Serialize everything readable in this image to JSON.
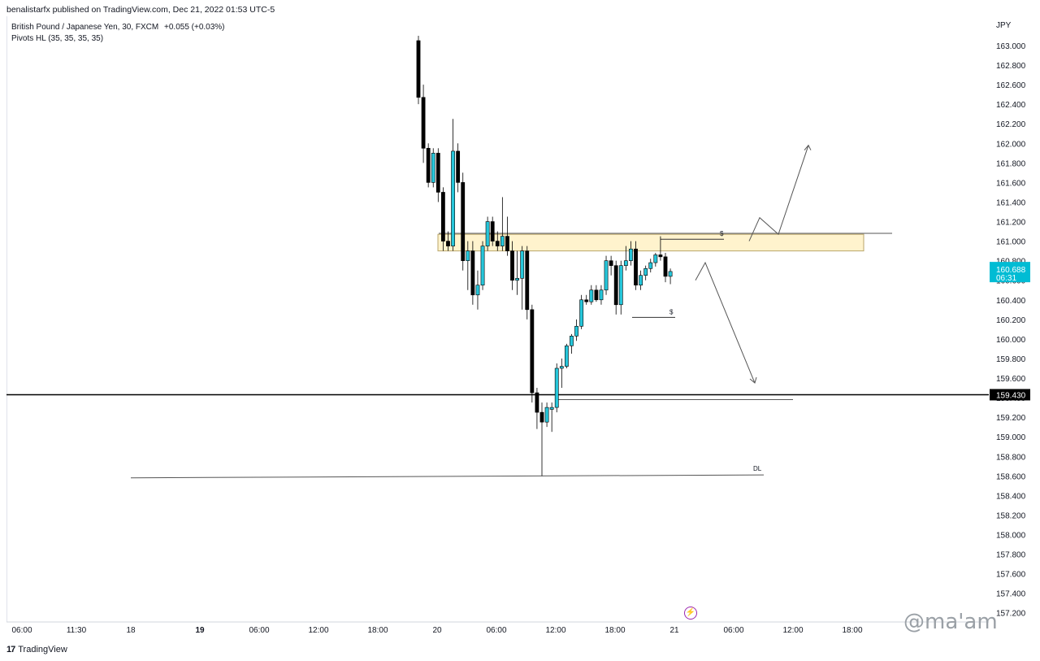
{
  "header": {
    "publisher_text": "benalistarfx published on TradingView.com, Dec 21, 2022 01:53 UTC-5"
  },
  "legend": {
    "symbol_line": "British Pound / Japanese Yen, 30, FXCM",
    "change": "+0.055 (+0.03%)",
    "indicator": "Pivots HL (35, 35, 35, 35)"
  },
  "price_scale": {
    "currency": "JPY",
    "ticks": [
      "163.000",
      "162.800",
      "162.600",
      "162.400",
      "162.200",
      "162.000",
      "161.800",
      "161.600",
      "161.400",
      "161.200",
      "161.000",
      "160.800",
      "160.600",
      "160.400",
      "160.200",
      "160.000",
      "159.800",
      "159.600",
      "159.400",
      "159.200",
      "159.000",
      "158.800",
      "158.600",
      "158.400",
      "158.200",
      "158.000",
      "157.800",
      "157.600",
      "157.400",
      "157.200"
    ],
    "current_price_label": "160.688",
    "countdown_label": "06:31",
    "horizontal_line_label": "159.430"
  },
  "time_scale": {
    "ticks": [
      {
        "label": "06:00",
        "bold": false
      },
      {
        "label": "11:30",
        "bold": false
      },
      {
        "label": "18",
        "bold": false
      },
      {
        "label": "19",
        "bold": true
      },
      {
        "label": "06:00",
        "bold": false
      },
      {
        "label": "12:00",
        "bold": false
      },
      {
        "label": "18:00",
        "bold": false
      },
      {
        "label": "20",
        "bold": false
      },
      {
        "label": "06:00",
        "bold": false
      },
      {
        "label": "12:00",
        "bold": false
      },
      {
        "label": "18:00",
        "bold": false
      },
      {
        "label": "21",
        "bold": false
      },
      {
        "label": "06:00",
        "bold": false
      },
      {
        "label": "12:00",
        "bold": false
      },
      {
        "label": "18:00",
        "bold": false
      }
    ]
  },
  "annotations": {
    "liquidity_top": "$",
    "liquidity_mid": "$",
    "dl_label": "DL"
  },
  "footer": {
    "brand": "TradingView",
    "brand_mark": "17",
    "watermark": "@ma'am"
  },
  "colors": {
    "bull": "#26c6da",
    "bear": "#000000",
    "zone_fill": "#fff3cd",
    "zone_stroke": "#b8a56a",
    "price_badge": "#00bcd4",
    "line_badge": "#000000"
  },
  "chart_data": {
    "type": "candlestick",
    "symbol": "British Pound / Japanese Yen",
    "interval": "30",
    "ylim": [
      157.2,
      163.0
    ],
    "candles": [
      {
        "o": 163.05,
        "h": 163.1,
        "l": 162.4,
        "c": 162.47
      },
      {
        "o": 162.47,
        "h": 162.6,
        "l": 161.8,
        "c": 161.95
      },
      {
        "o": 161.95,
        "h": 162.0,
        "l": 161.55,
        "c": 161.6
      },
      {
        "o": 161.6,
        "h": 161.95,
        "l": 161.55,
        "c": 161.9
      },
      {
        "o": 161.9,
        "h": 161.95,
        "l": 161.4,
        "c": 161.5
      },
      {
        "o": 161.5,
        "h": 161.55,
        "l": 160.9,
        "c": 161.0
      },
      {
        "o": 161.0,
        "h": 161.1,
        "l": 160.9,
        "c": 160.95
      },
      {
        "o": 160.95,
        "h": 162.25,
        "l": 160.9,
        "c": 161.92
      },
      {
        "o": 161.92,
        "h": 162.0,
        "l": 161.5,
        "c": 161.6
      },
      {
        "o": 161.6,
        "h": 161.7,
        "l": 160.7,
        "c": 160.8
      },
      {
        "o": 160.8,
        "h": 161.0,
        "l": 160.5,
        "c": 160.9
      },
      {
        "o": 160.9,
        "h": 161.0,
        "l": 160.35,
        "c": 160.45
      },
      {
        "o": 160.45,
        "h": 160.7,
        "l": 160.3,
        "c": 160.55
      },
      {
        "o": 160.55,
        "h": 161.0,
        "l": 160.5,
        "c": 160.95
      },
      {
        "o": 160.95,
        "h": 161.25,
        "l": 160.9,
        "c": 161.2
      },
      {
        "o": 161.2,
        "h": 161.25,
        "l": 160.95,
        "c": 161.0
      },
      {
        "o": 161.0,
        "h": 161.1,
        "l": 160.9,
        "c": 160.95
      },
      {
        "o": 160.95,
        "h": 161.45,
        "l": 160.9,
        "c": 161.05
      },
      {
        "o": 161.05,
        "h": 161.25,
        "l": 160.85,
        "c": 160.9
      },
      {
        "o": 160.9,
        "h": 161.0,
        "l": 160.5,
        "c": 160.6
      },
      {
        "o": 160.6,
        "h": 160.9,
        "l": 160.45,
        "c": 160.62
      },
      {
        "o": 160.62,
        "h": 160.95,
        "l": 160.3,
        "c": 160.9
      },
      {
        "o": 160.9,
        "h": 160.95,
        "l": 160.2,
        "c": 160.3
      },
      {
        "o": 160.3,
        "h": 160.35,
        "l": 159.35,
        "c": 159.45
      },
      {
        "o": 159.45,
        "h": 159.5,
        "l": 159.08,
        "c": 159.25
      },
      {
        "o": 159.25,
        "h": 159.35,
        "l": 158.6,
        "c": 159.15
      },
      {
        "o": 159.15,
        "h": 159.35,
        "l": 159.1,
        "c": 159.3
      },
      {
        "o": 159.28,
        "h": 159.35,
        "l": 159.05,
        "c": 159.3
      },
      {
        "o": 159.3,
        "h": 159.75,
        "l": 159.25,
        "c": 159.7
      },
      {
        "o": 159.7,
        "h": 159.8,
        "l": 159.5,
        "c": 159.72
      },
      {
        "o": 159.72,
        "h": 159.95,
        "l": 159.7,
        "c": 159.93
      },
      {
        "o": 159.93,
        "h": 160.05,
        "l": 159.85,
        "c": 160.03
      },
      {
        "o": 160.03,
        "h": 160.2,
        "l": 159.98,
        "c": 160.13
      },
      {
        "o": 160.13,
        "h": 160.45,
        "l": 160.1,
        "c": 160.4
      },
      {
        "o": 160.4,
        "h": 160.45,
        "l": 160.35,
        "c": 160.38
      },
      {
        "o": 160.38,
        "h": 160.55,
        "l": 160.35,
        "c": 160.5
      },
      {
        "o": 160.5,
        "h": 160.55,
        "l": 160.38,
        "c": 160.4
      },
      {
        "o": 160.4,
        "h": 160.55,
        "l": 160.35,
        "c": 160.5
      },
      {
        "o": 160.5,
        "h": 160.85,
        "l": 160.45,
        "c": 160.8
      },
      {
        "o": 160.8,
        "h": 160.85,
        "l": 160.65,
        "c": 160.75
      },
      {
        "o": 160.75,
        "h": 160.8,
        "l": 160.25,
        "c": 160.35
      },
      {
        "o": 160.35,
        "h": 160.8,
        "l": 160.25,
        "c": 160.75
      },
      {
        "o": 160.75,
        "h": 160.95,
        "l": 160.7,
        "c": 160.8
      },
      {
        "o": 160.8,
        "h": 161.0,
        "l": 160.75,
        "c": 160.92
      },
      {
        "o": 160.92,
        "h": 161.0,
        "l": 160.5,
        "c": 160.55
      },
      {
        "o": 160.55,
        "h": 160.7,
        "l": 160.5,
        "c": 160.65
      },
      {
        "o": 160.65,
        "h": 160.75,
        "l": 160.6,
        "c": 160.72
      },
      {
        "o": 160.72,
        "h": 160.82,
        "l": 160.68,
        "c": 160.78
      },
      {
        "o": 160.78,
        "h": 160.88,
        "l": 160.74,
        "c": 160.86
      },
      {
        "o": 160.86,
        "h": 161.05,
        "l": 160.8,
        "c": 160.84
      },
      {
        "o": 160.84,
        "h": 160.88,
        "l": 160.58,
        "c": 160.64
      },
      {
        "o": 160.64,
        "h": 160.72,
        "l": 160.56,
        "c": 160.69
      }
    ],
    "zone": {
      "top": 161.07,
      "bottom": 160.9
    },
    "horizontal_lines": [
      {
        "price": 159.43,
        "label": "159.430"
      },
      {
        "price": 158.6,
        "label": "DL"
      },
      {
        "price": 159.38
      },
      {
        "price": 161.08
      },
      {
        "price": 161.02
      },
      {
        "price": 160.22
      }
    ],
    "current_price": 160.688,
    "projection_up": [
      161.0,
      161.24,
      161.07,
      161.98
    ],
    "projection_down": [
      160.6,
      160.78,
      159.55
    ]
  }
}
